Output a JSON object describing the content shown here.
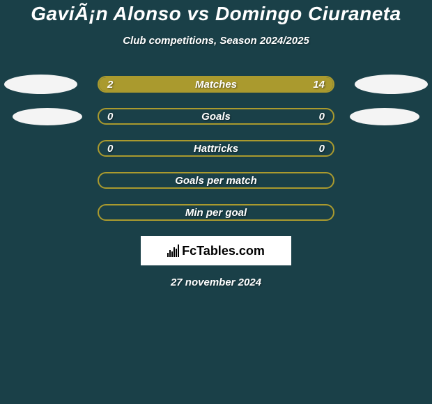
{
  "title": "GaviÃ¡n Alonso vs Domingo Ciuraneta",
  "subtitle": "Club competitions, Season 2024/2025",
  "date": "27 november 2024",
  "logo_text": "FcTables.com",
  "colors": {
    "background": "#1a4048",
    "bar_border": "#aa9a2e",
    "bar_fill": "#aa9a2e",
    "text": "#ffffff",
    "badge": "#f4f4f4"
  },
  "stats": [
    {
      "label": "Matches",
      "left_value": "2",
      "right_value": "14",
      "left_pct": 12.5,
      "right_pct": 87.5,
      "show_left_badge": true,
      "show_right_badge": true,
      "badge_variant": 1
    },
    {
      "label": "Goals",
      "left_value": "0",
      "right_value": "0",
      "left_pct": 0,
      "right_pct": 0,
      "show_left_badge": true,
      "show_right_badge": true,
      "badge_variant": 2
    },
    {
      "label": "Hattricks",
      "left_value": "0",
      "right_value": "0",
      "left_pct": 0,
      "right_pct": 0,
      "show_left_badge": false,
      "show_right_badge": false
    },
    {
      "label": "Goals per match",
      "left_value": "",
      "right_value": "",
      "left_pct": 0,
      "right_pct": 0,
      "show_left_badge": false,
      "show_right_badge": false
    },
    {
      "label": "Min per goal",
      "left_value": "",
      "right_value": "",
      "left_pct": 0,
      "right_pct": 0,
      "show_left_badge": false,
      "show_right_badge": false
    }
  ]
}
